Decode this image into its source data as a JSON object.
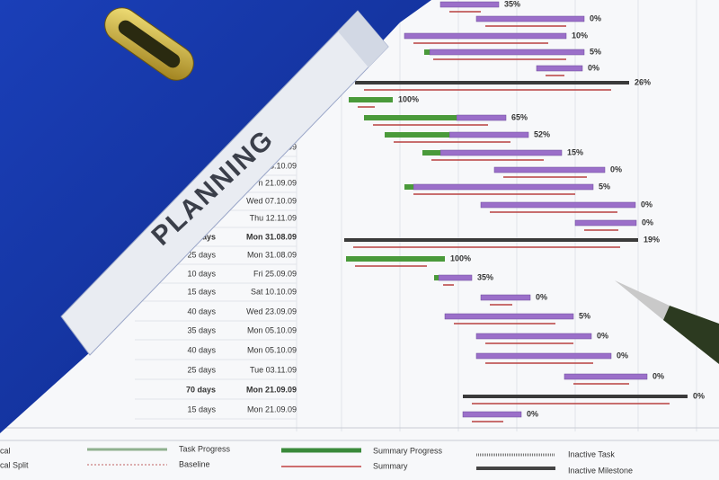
{
  "binder_label": "PLANNING",
  "table": {
    "rows": [
      {
        "duration": null,
        "date": "09",
        "bold": false
      },
      {
        "duration": null,
        "date": "3.10.09",
        "bold": false
      },
      {
        "duration": null,
        "date": "n 21.09.09",
        "bold": false
      },
      {
        "duration": null,
        "date": "Wed 07.10.09",
        "bold": false
      },
      {
        "duration": null,
        "date": "Thu 12.11.09",
        "bold": false
      },
      {
        "duration": "days",
        "date": "Mon 31.08.09",
        "bold": true
      },
      {
        "duration": "25 days",
        "date": "Mon 31.08.09",
        "bold": false
      },
      {
        "duration": "10 days",
        "date": "Fri 25.09.09",
        "bold": false
      },
      {
        "duration": "15 days",
        "date": "Sat 10.10.09",
        "bold": false
      },
      {
        "duration": "40 days",
        "date": "Wed 23.09.09",
        "bold": false
      },
      {
        "duration": "35 days",
        "date": "Mon 05.10.09",
        "bold": false
      },
      {
        "duration": "40 days",
        "date": "Mon 05.10.09",
        "bold": false
      },
      {
        "duration": "25 days",
        "date": "Tue 03.11.09",
        "bold": false
      },
      {
        "duration": "70 days",
        "date": "Mon 21.09.09",
        "bold": true
      },
      {
        "duration": "15 days",
        "date": "Mon 21.09.09",
        "bold": false
      }
    ]
  },
  "gantt": {
    "percents": [
      "35%",
      "0%",
      "10%",
      "5%",
      "0%",
      "26%",
      "100%",
      "65%",
      "52%",
      "15%",
      "0%",
      "5%",
      "0%",
      "0%",
      "19%",
      "100%",
      "35%",
      "0%",
      "5%",
      "0%",
      "0%",
      "0%",
      "0%",
      "0%"
    ]
  },
  "legend": {
    "items": [
      "cal",
      "cal Split",
      "Task Progress",
      "Baseline",
      "Summary Progress",
      "Summary",
      "Inactive Task",
      "Inactive Milestone"
    ]
  }
}
